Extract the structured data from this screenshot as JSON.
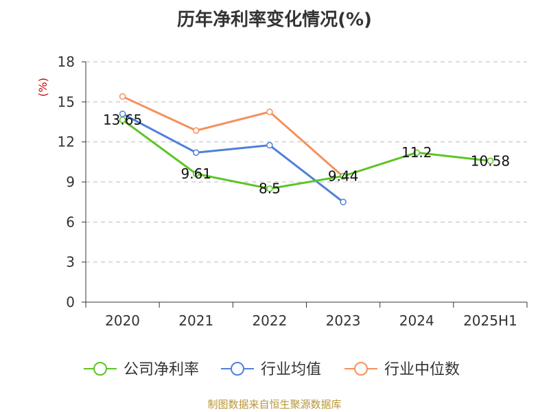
{
  "chart_data": {
    "type": "line",
    "title": "历年净利率变化情况(%)",
    "ylabel": "(%)",
    "xlabel": "",
    "categories": [
      "2020",
      "2021",
      "2022",
      "2023",
      "2024",
      "2025H1"
    ],
    "ylim": [
      0,
      18
    ],
    "yticks": [
      0,
      3,
      6,
      9,
      12,
      15,
      18
    ],
    "grid": true,
    "legend_position": "bottom",
    "series": [
      {
        "name": "公司净利率",
        "color": "#5cc424",
        "values": [
          13.65,
          9.61,
          8.5,
          9.44,
          11.2,
          10.58
        ],
        "labels": [
          "13.65",
          "9.61",
          "8.5",
          "9.44",
          "11.2",
          "10.58"
        ]
      },
      {
        "name": "行业均值",
        "color": "#4f7fda",
        "values": [
          14.1,
          11.2,
          11.75,
          7.5,
          null,
          null
        ]
      },
      {
        "name": "行业中位数",
        "color": "#f5905b",
        "values": [
          15.4,
          12.85,
          14.25,
          9.4,
          null,
          null
        ]
      }
    ]
  },
  "footer": {
    "source": "制图数据来自恒生聚源数据库"
  }
}
